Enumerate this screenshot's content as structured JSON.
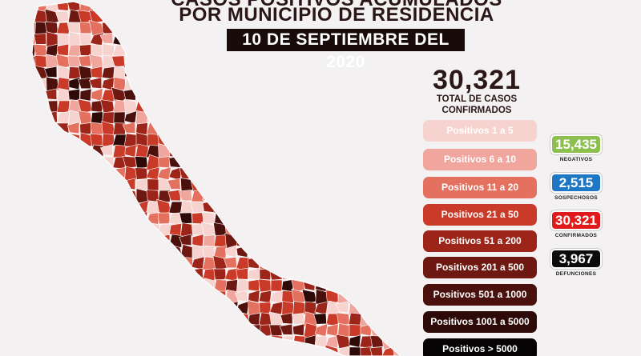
{
  "header": {
    "title_line1": "CASOS POSITIVOS ACUMULADOS",
    "title_line2": "POR MUNICIPIO DE RESIDENCIA",
    "date": "10 DE SEPTIEMBRE DEL 2020"
  },
  "summary": {
    "total": "30,321",
    "total_label_line1": "TOTAL DE CASOS",
    "total_label_line2": "CONFIRMADOS"
  },
  "legend": [
    {
      "label": "Positivos 1 a 5",
      "color": "#f7d3d0",
      "text_color": "#ffffff"
    },
    {
      "label": "Positivos 6 a 10",
      "color": "#f0a59d",
      "text_color": "#ffffff"
    },
    {
      "label": "Positivos 11 a 20",
      "color": "#e4705f",
      "text_color": "#ffffff"
    },
    {
      "label": "Positivos 21 a 50",
      "color": "#c93a28",
      "text_color": "#ffffff"
    },
    {
      "label": "Positivos 51 a 200",
      "color": "#9c2419",
      "text_color": "#ffffff"
    },
    {
      "label": "Positivos 201 a 500",
      "color": "#6e1812",
      "text_color": "#ffffff"
    },
    {
      "label": "Positivos 501 a 1000",
      "color": "#4a100c",
      "text_color": "#ffffff"
    },
    {
      "label": "Positivos 1001 a 5000",
      "color": "#2d0a08",
      "text_color": "#ffffff"
    },
    {
      "label": "Positivos > 5000",
      "color": "#050303",
      "text_color": "#ffffff"
    }
  ],
  "stats": [
    {
      "value": "15,435",
      "label": "NEGATIVOS",
      "color": "#8cbf4e"
    },
    {
      "value": "2,515",
      "label": "SOSPECHOSOS",
      "color": "#1e77c4"
    },
    {
      "value": "30,321",
      "label": "CONFIRMADOS",
      "color": "#e01a1a"
    },
    {
      "value": "3,967",
      "label": "DEFUNCIONES",
      "color": "#0b0b0b"
    }
  ],
  "map": {
    "region": "Veracruz",
    "palette": [
      "#f7d3d0",
      "#f0a59d",
      "#e4705f",
      "#c93a28",
      "#9c2419",
      "#6e1812",
      "#4a100c",
      "#2d0a08"
    ]
  }
}
